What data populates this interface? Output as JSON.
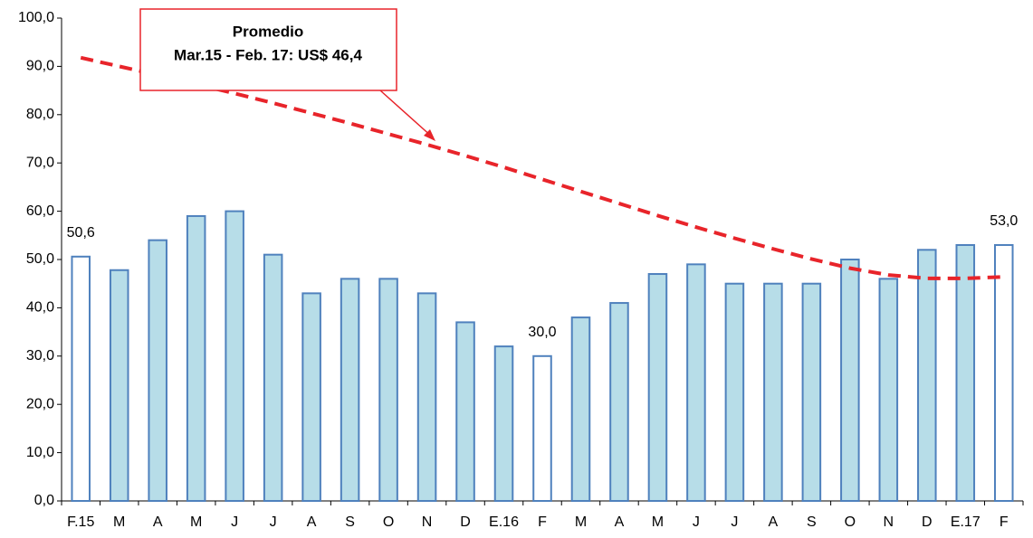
{
  "chart_data": {
    "type": "bar",
    "categories": [
      "F.15",
      "M",
      "A",
      "M",
      "J",
      "J",
      "A",
      "S",
      "O",
      "N",
      "D",
      "E.16",
      "F",
      "M",
      "A",
      "M",
      "J",
      "J",
      "A",
      "S",
      "O",
      "N",
      "D",
      "E.17",
      "F"
    ],
    "series": [
      {
        "type": "bar",
        "color": "#4f81bd",
        "fills": [
          "#ffffff",
          "#b7dde8",
          "#b7dde8",
          "#b7dde8",
          "#b7dde8",
          "#b7dde8",
          "#b7dde8",
          "#b7dde8",
          "#b7dde8",
          "#b7dde8",
          "#b7dde8",
          "#b7dde8",
          "#ffffff",
          "#b7dde8",
          "#b7dde8",
          "#b7dde8",
          "#b7dde8",
          "#b7dde8",
          "#b7dde8",
          "#b7dde8",
          "#b7dde8",
          "#b7dde8",
          "#b7dde8",
          "#b7dde8",
          "#ffffff"
        ],
        "values": [
          50.6,
          47.8,
          54,
          59,
          60,
          51,
          43,
          46,
          46,
          43,
          37,
          32,
          30,
          38,
          41,
          47,
          49,
          45,
          45,
          45,
          50,
          46,
          52,
          53,
          53.0
        ],
        "value_labels": [
          "50,6",
          null,
          null,
          null,
          null,
          null,
          null,
          null,
          null,
          null,
          null,
          null,
          "30,0",
          null,
          null,
          null,
          null,
          null,
          null,
          null,
          null,
          null,
          null,
          null,
          "53,0"
        ]
      },
      {
        "type": "line",
        "color": "#e8242a",
        "dashed": true,
        "values": [
          91.8,
          90.0,
          88.2,
          86.3,
          84.4,
          82.4,
          80.3,
          78.2,
          76.0,
          73.8,
          71.5,
          69.1,
          66.6,
          64.1,
          61.6,
          59.1,
          56.7,
          54.4,
          52.2,
          50.1,
          48.2,
          46.8,
          46.1,
          46.1,
          46.4
        ]
      }
    ],
    "ylim": [
      0,
      100
    ],
    "yticks": [
      {
        "value": 0,
        "label": "0,0"
      },
      {
        "value": 10,
        "label": "10,0"
      },
      {
        "value": 20,
        "label": "20,0"
      },
      {
        "value": 30,
        "label": "30,0"
      },
      {
        "value": 40,
        "label": "40,0"
      },
      {
        "value": 50,
        "label": "50,0"
      },
      {
        "value": 60,
        "label": "60,0"
      },
      {
        "value": 70,
        "label": "70,0"
      },
      {
        "value": 80,
        "label": "80,0"
      },
      {
        "value": 90,
        "label": "90,0"
      },
      {
        "value": 100,
        "label": "100,0"
      }
    ],
    "grid": false,
    "annotation": {
      "lines": [
        "Promedio",
        "Mar.15 - Feb. 17: US$ 46,4"
      ],
      "color": "#e8242a"
    }
  }
}
